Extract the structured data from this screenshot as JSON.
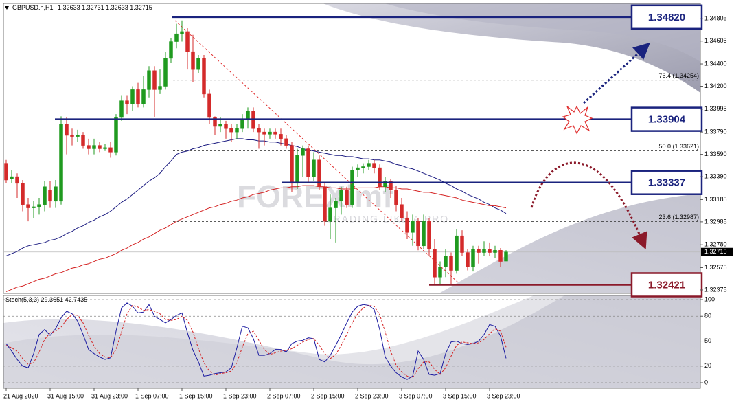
{
  "chart_data": {
    "type": "candlestick",
    "title": "GBPUSD.h,H1",
    "categories": [
      "21 Aug 2020",
      null,
      null,
      null,
      null,
      null,
      null,
      null,
      "31 Aug 15:00",
      null,
      null,
      null,
      null,
      null,
      null,
      null,
      "31 Aug 23:00",
      null,
      null,
      null,
      null,
      null,
      null,
      null,
      "1 Sep 07:00",
      null,
      null,
      null,
      null,
      null,
      null,
      null,
      "1 Sep 15:00",
      null,
      null,
      null,
      null,
      null,
      null,
      null,
      "1 Sep 23:00",
      null,
      null,
      null,
      null,
      null,
      null,
      null,
      "2 Sep 07:00",
      null,
      null,
      null,
      null,
      null,
      null,
      null,
      "2 Sep 15:00",
      null,
      null,
      null,
      null,
      null,
      null,
      null,
      "2 Sep 23:00",
      null,
      null,
      null,
      null,
      null,
      null,
      null,
      "3 Sep 07:00",
      null,
      null,
      null,
      null,
      null,
      null,
      null,
      "3 Sep 15:00",
      null,
      null,
      null,
      null,
      null,
      null,
      null,
      "3 Sep 23:00",
      null,
      null,
      null
    ],
    "open": [
      1.3351,
      1.3337,
      1.3339,
      1.3333,
      1.3314,
      1.3311,
      1.3312,
      1.3314,
      1.3327,
      1.3317,
      1.3317,
      1.3386,
      1.3376,
      1.3375,
      1.3376,
      1.3367,
      1.3364,
      1.3367,
      1.3364,
      1.3365,
      1.3361,
      1.3392,
      1.3407,
      1.3404,
      1.3417,
      1.3404,
      1.3417,
      1.3434,
      1.3417,
      1.342,
      1.3445,
      1.346,
      1.3467,
      1.3469,
      1.3451,
      1.3435,
      1.3445,
      1.3413,
      1.3392,
      1.3384,
      1.3386,
      1.3382,
      1.3379,
      1.3382,
      1.339,
      1.3398,
      1.3382,
      1.3379,
      1.3377,
      1.3379,
      1.3377,
      1.3373,
      1.3367,
      1.3333,
      1.3358,
      1.3364,
      1.3339,
      1.3354,
      1.333,
      1.3299,
      1.3311,
      1.3317,
      1.3327,
      1.3314,
      1.3345,
      1.3347,
      1.3348,
      1.3351,
      1.3347,
      1.333,
      1.3335,
      1.3327,
      1.3314,
      1.3302,
      1.3289,
      1.3299,
      1.3277,
      1.3299,
      1.3274,
      1.3249,
      1.3258,
      1.3268,
      1.3255,
      1.3286,
      1.3271,
      1.3258,
      1.3274,
      1.3271,
      1.3274,
      1.3271,
      1.3273,
      1.32633
    ],
    "high": [
      1.3354,
      1.3345,
      1.3342,
      1.3336,
      1.332,
      1.3317,
      1.332,
      1.3335,
      1.3335,
      1.3336,
      1.3393,
      1.3392,
      1.3382,
      1.3381,
      1.3379,
      1.3373,
      1.3373,
      1.337,
      1.3368,
      1.337,
      1.3395,
      1.3412,
      1.3412,
      1.342,
      1.3423,
      1.3429,
      1.3438,
      1.3438,
      1.3435,
      1.3451,
      1.3463,
      1.3476,
      1.3479,
      1.3472,
      1.3466,
      1.3448,
      1.3448,
      1.3417,
      1.3393,
      1.3392,
      1.3389,
      1.3386,
      1.3386,
      1.3395,
      1.3401,
      1.3401,
      1.3386,
      1.3382,
      1.3382,
      1.3382,
      1.3382,
      1.3376,
      1.337,
      1.3364,
      1.3367,
      1.3367,
      1.3361,
      1.3358,
      1.3333,
      1.3323,
      1.332,
      1.333,
      1.333,
      1.3348,
      1.335,
      1.3351,
      1.3354,
      1.3354,
      1.335,
      1.3339,
      1.3337,
      1.3331,
      1.332,
      1.3308,
      1.3305,
      1.3302,
      1.3305,
      1.3302,
      1.3283,
      1.3263,
      1.3274,
      1.3271,
      1.3292,
      1.3291,
      1.3274,
      1.3277,
      1.3277,
      1.3281,
      1.328,
      1.3277,
      1.3275,
      1.32731
    ],
    "low": [
      1.3333,
      1.3333,
      1.332,
      1.3308,
      1.3299,
      1.3302,
      1.3305,
      1.3308,
      1.3311,
      1.3311,
      1.3314,
      1.3359,
      1.3367,
      1.337,
      1.3364,
      1.3359,
      1.3359,
      1.3361,
      1.3362,
      1.3356,
      1.3358,
      1.3389,
      1.3395,
      1.3398,
      1.3401,
      1.3401,
      1.341,
      1.3392,
      1.3413,
      1.3417,
      1.3441,
      1.3454,
      1.346,
      1.3435,
      1.3424,
      1.3432,
      1.341,
      1.3386,
      1.3376,
      1.3379,
      1.3373,
      1.337,
      1.3373,
      1.3379,
      1.3382,
      1.3379,
      1.3364,
      1.3367,
      1.3373,
      1.3373,
      1.3367,
      1.3364,
      1.3325,
      1.3328,
      1.3339,
      1.3333,
      1.3335,
      1.3327,
      1.3295,
      1.3283,
      1.328,
      1.3305,
      1.3311,
      1.3311,
      1.3339,
      1.3342,
      1.3345,
      1.3342,
      1.3327,
      1.3325,
      1.332,
      1.3308,
      1.3299,
      1.3283,
      1.3277,
      1.3273,
      1.3274,
      1.3268,
      1.3243,
      1.32421,
      1.3249,
      1.3243,
      1.3252,
      1.3268,
      1.3255,
      1.3254,
      1.3261,
      1.3268,
      1.3268,
      1.3266,
      1.3258,
      1.32633
    ],
    "close": [
      1.3336,
      1.3339,
      1.3333,
      1.3314,
      1.3311,
      1.3312,
      1.3314,
      1.333,
      1.3317,
      1.333,
      1.3386,
      1.3376,
      1.3375,
      1.3376,
      1.3367,
      1.3364,
      1.3367,
      1.3364,
      1.3365,
      1.3361,
      1.3392,
      1.3407,
      1.3404,
      1.3417,
      1.3404,
      1.3417,
      1.3434,
      1.3417,
      1.342,
      1.3445,
      1.346,
      1.3467,
      1.3469,
      1.3451,
      1.3435,
      1.3445,
      1.3413,
      1.3392,
      1.3384,
      1.3386,
      1.3382,
      1.3379,
      1.3382,
      1.339,
      1.3398,
      1.3382,
      1.3379,
      1.3377,
      1.3379,
      1.3377,
      1.3373,
      1.3367,
      1.3333,
      1.3358,
      1.3364,
      1.3339,
      1.3354,
      1.333,
      1.3299,
      1.3311,
      1.3317,
      1.3327,
      1.3314,
      1.3345,
      1.3347,
      1.3348,
      1.3351,
      1.3347,
      1.333,
      1.3335,
      1.3327,
      1.3314,
      1.3302,
      1.3289,
      1.3299,
      1.3277,
      1.3299,
      1.3274,
      1.3249,
      1.3258,
      1.3268,
      1.3255,
      1.3286,
      1.3271,
      1.3258,
      1.3274,
      1.3271,
      1.3274,
      1.3271,
      1.3273,
      1.3263,
      1.32715
    ],
    "up_color": "#1f9a1f",
    "down_color": "#d42a2a",
    "moving_averages": [
      {
        "color": "#1a1a80",
        "values": [
          1.3268,
          1.327,
          1.3272,
          1.3275,
          1.3277,
          1.3278,
          1.3279,
          1.328,
          1.3282,
          1.3283,
          1.3285,
          1.3288,
          1.329,
          1.3293,
          1.3295,
          1.3298,
          1.33,
          1.3303,
          1.3305,
          1.3308,
          1.3312,
          1.3316,
          1.3319,
          1.3323,
          1.3327,
          1.3331,
          1.3335,
          1.3338,
          1.3342,
          1.3348,
          1.3353,
          1.3359,
          1.3361,
          1.3362,
          1.3364,
          1.3365,
          1.3367,
          1.3368,
          1.3369,
          1.337,
          1.3371,
          1.3372,
          1.3373,
          1.3373,
          1.3372,
          1.3372,
          1.3371,
          1.3371,
          1.337,
          1.337,
          1.3369,
          1.3368,
          1.3367,
          1.3366,
          1.3364,
          1.3363,
          1.3362,
          1.3361,
          1.336,
          1.3359,
          1.3358,
          1.3358,
          1.3357,
          1.3357,
          1.3356,
          1.3355,
          1.3355,
          1.3354,
          1.3354,
          1.3353,
          1.3352,
          1.335,
          1.3349,
          1.3347,
          1.3346,
          1.3344,
          1.3342,
          1.334,
          1.3338,
          1.3336,
          1.3333,
          1.3331,
          1.3328,
          1.3326,
          1.3323,
          1.3321,
          1.3319,
          1.3316,
          1.3314,
          1.3311,
          1.3309,
          1.3306
        ]
      },
      {
        "color": "#d42020",
        "values": [
          1.3236,
          1.3238,
          1.324,
          1.3241,
          1.3243,
          1.3245,
          1.3247,
          1.3248,
          1.325,
          1.3252,
          1.3253,
          1.3255,
          1.3257,
          1.3258,
          1.326,
          1.3261,
          1.3263,
          1.3265,
          1.3266,
          1.3268,
          1.327,
          1.3273,
          1.3275,
          1.3278,
          1.328,
          1.3283,
          1.3285,
          1.3288,
          1.3291,
          1.3293,
          1.3296,
          1.3299,
          1.3301,
          1.3303,
          1.3305,
          1.3307,
          1.3309,
          1.3311,
          1.3312,
          1.3314,
          1.3315,
          1.3317,
          1.3318,
          1.332,
          1.3321,
          1.3323,
          1.3324,
          1.3325,
          1.3327,
          1.3328,
          1.3329,
          1.3329,
          1.333,
          1.333,
          1.3331,
          1.3331,
          1.3331,
          1.333,
          1.333,
          1.3329,
          1.3329,
          1.3328,
          1.3328,
          1.3328,
          1.3329,
          1.3329,
          1.3329,
          1.3329,
          1.333,
          1.333,
          1.3329,
          1.3329,
          1.3328,
          1.3328,
          1.3327,
          1.3326,
          1.3325,
          1.3325,
          1.3324,
          1.3323,
          1.3322,
          1.3321,
          1.332,
          1.3318,
          1.3317,
          1.3316,
          1.3315,
          1.3314,
          1.3313,
          1.3313,
          1.3312,
          1.3311
        ]
      }
    ],
    "ylim": [
      1.32344,
      1.34942
    ],
    "yticks": [
      1.34805,
      1.34605,
      {
        "value": 1.344,
        "label": "1.34400"
      },
      {
        "value": 1.342,
        "label": "1.34200"
      },
      1.33995,
      {
        "value": 1.3379,
        "label": "1.33790"
      },
      {
        "value": 1.3359,
        "label": "1.33590"
      },
      {
        "value": 1.3339,
        "label": "1.33390"
      },
      1.33185,
      1.32985,
      {
        "value": 1.3278,
        "label": "1.32780"
      },
      1.32575,
      1.32375
    ],
    "levels": [
      {
        "value": 1.3482,
        "label": "1.34820",
        "color": "#1a237e"
      },
      {
        "value": 1.33904,
        "label": "1.33904",
        "color": "#1a237e"
      },
      {
        "value": 1.33337,
        "label": "1.33337",
        "color": "#1a237e"
      },
      {
        "value": 1.32421,
        "label": "1.32421",
        "color": "#8b1a2a"
      }
    ],
    "fibonacci": [
      {
        "value": 1.34254,
        "label": "76.4 (1.34254)"
      },
      {
        "value": 1.33621,
        "label": "50.0 (1.33621)"
      },
      {
        "value": 1.32987,
        "label": "23.6 (1.32987)"
      }
    ],
    "watermark": {
      "brand": "FOREXimf",
      "tagline": "TRADING LIKE A PRO"
    },
    "stochastic": {
      "title": "Stoch(5,3,3)",
      "k": {
        "color": "#1a1aa0",
        "values": [
          47,
          38,
          28,
          20,
          18,
          35,
          58,
          64,
          57,
          65,
          78,
          86,
          83,
          74,
          58,
          40,
          35,
          31,
          28,
          30,
          62,
          90,
          96,
          92,
          84,
          85,
          94,
          80,
          76,
          72,
          76,
          81,
          84,
          60,
          39,
          25,
          8,
          9,
          11,
          12,
          13,
          18,
          42,
          68,
          66,
          53,
          33,
          33,
          35,
          40,
          40,
          37,
          47,
          50,
          51,
          54,
          53,
          28,
          25,
          33,
          45,
          58,
          72,
          85,
          92,
          94,
          93,
          88,
          64,
          31,
          20,
          12,
          7,
          4,
          8,
          38,
          28,
          10,
          9,
          11,
          35,
          49,
          50,
          47,
          46,
          47,
          50,
          58,
          70,
          68,
          56,
          29.3651
        ]
      },
      "d": {
        "color": "#d42020",
        "values": [
          45,
          42,
          38,
          29,
          22,
          24,
          37,
          52,
          60,
          62,
          67,
          76,
          82,
          81,
          72,
          57,
          44,
          35,
          31,
          30,
          40,
          61,
          83,
          93,
          91,
          87,
          88,
          86,
          83,
          76,
          75,
          76,
          80,
          75,
          61,
          41,
          24,
          14,
          9,
          11,
          12,
          14,
          24,
          43,
          59,
          62,
          51,
          40,
          34,
          36,
          38,
          39,
          41,
          45,
          49,
          52,
          53,
          45,
          35,
          29,
          34,
          45,
          58,
          72,
          83,
          90,
          93,
          92,
          82,
          61,
          38,
          21,
          13,
          8,
          6,
          17,
          25,
          25,
          16,
          10,
          18,
          32,
          45,
          49,
          48,
          47,
          48,
          52,
          59,
          65,
          62,
          42.7435
        ]
      },
      "ylim": [
        -6.6,
        105
      ],
      "yticks": [
        100,
        80,
        50,
        20,
        0
      ],
      "grid": true
    }
  }
}
